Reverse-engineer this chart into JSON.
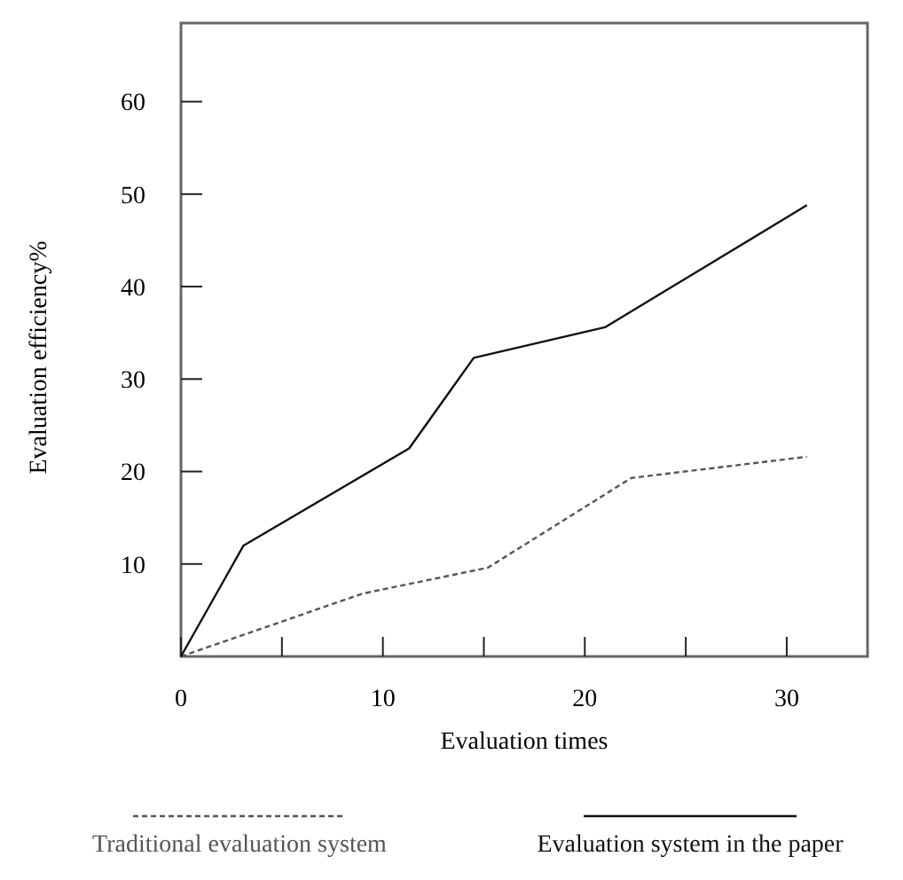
{
  "chart_data": {
    "type": "line",
    "xlabel": "Evaluation times",
    "ylabel": "Evaluation efficiency%",
    "xlim": [
      0,
      34
    ],
    "ylim": [
      0,
      68.5
    ],
    "xticks": [
      0,
      {
        "value": 5,
        "label": null
      },
      10,
      {
        "value": 15,
        "label": null
      },
      20,
      {
        "value": 25,
        "label": null
      },
      30
    ],
    "yticks": [
      10,
      20,
      30,
      40,
      50,
      60
    ],
    "grid": false,
    "legend": "bottom",
    "marker": "none",
    "series": [
      {
        "name": "Traditional evaluation system",
        "color": "#555555",
        "line_style": "dashed",
        "x": [
          0,
          9,
          15.2,
          22.3,
          31
        ],
        "values": [
          0,
          6.8,
          9.6,
          19.3,
          21.6
        ]
      },
      {
        "name": "Evaluation system in the paper",
        "color": "#111111",
        "line_style": "solid",
        "x": [
          0,
          3.1,
          11.3,
          14.5,
          21,
          31
        ],
        "values": [
          0,
          12,
          22.5,
          32.3,
          35.6,
          48.8
        ]
      }
    ]
  }
}
